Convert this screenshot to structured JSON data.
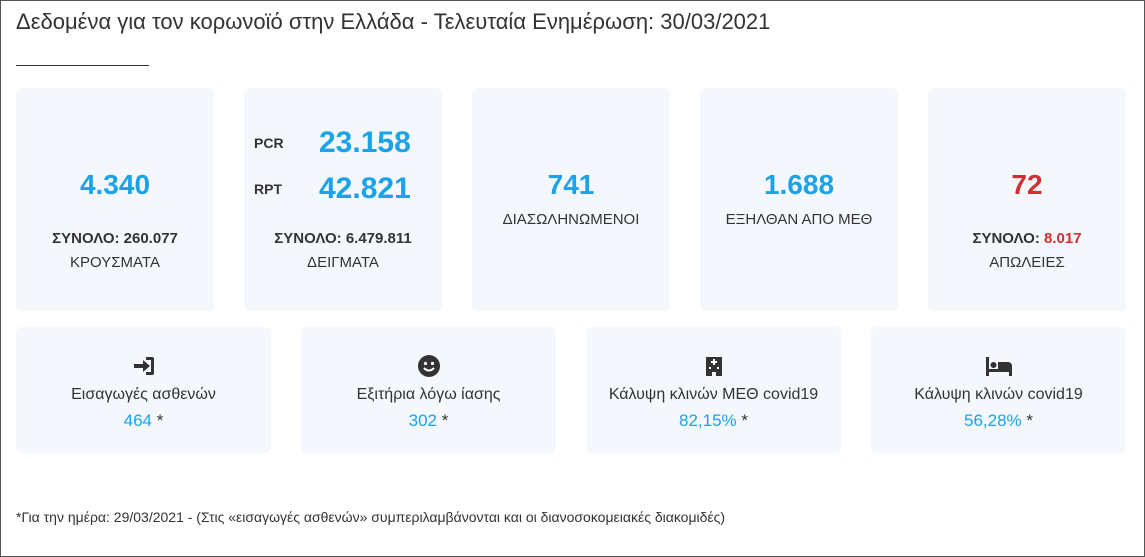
{
  "header": {
    "title": "Δεδομένα για τον κορωνοϊό στην Ελλάδα - Τελευταία Ενημέρωση: 30/03/2021"
  },
  "top_cards": [
    {
      "value": "4.340",
      "total_label": "ΣΥΝΟΛΟ:",
      "total": "260.077",
      "label": "ΚΡΟΥΣΜΑΤΑ"
    },
    {
      "rows": [
        {
          "label": "PCR",
          "value": "23.158"
        },
        {
          "label": "RPT",
          "value": "42.821"
        }
      ],
      "total_label": "ΣΥΝΟΛΟ:",
      "total": "6.479.811",
      "label": "ΔΕΙΓΜΑΤΑ"
    },
    {
      "value": "741",
      "label": "ΔΙΑΣΩΛΗΝΩΜΕΝΟΙ"
    },
    {
      "value": "1.688",
      "label": "ΕΞΗΛΘΑΝ ΑΠΟ ΜΕΘ"
    },
    {
      "value": "72",
      "total_label": "ΣΥΝΟΛΟ:",
      "total": "8.017",
      "label": "ΑΠΩΛΕΙΕΣ"
    }
  ],
  "bottom_cards": [
    {
      "label": "Εισαγωγές ασθενών",
      "value": "464",
      "marker": "*"
    },
    {
      "label": "Εξιτήρια λόγω ίασης",
      "value": "302",
      "marker": "*"
    },
    {
      "label": "Κάλυψη κλινών ΜΕΘ covid19",
      "value": "82,15%",
      "marker": "*"
    },
    {
      "label": "Κάλυψη κλινών covid19",
      "value": "56,28%",
      "marker": "*"
    }
  ],
  "footnote": "*Για την ημέρα: 29/03/2021 - (Στις «εισαγωγές ασθενών» συμπεριλαμβάνονται και οι διανοσοκομειακές διακομιδές)"
}
